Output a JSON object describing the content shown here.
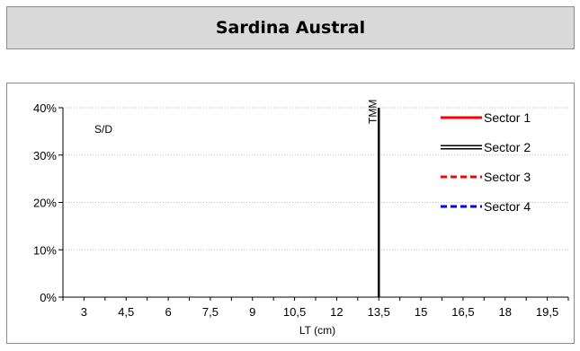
{
  "page": {
    "title": "Sardina Austral"
  },
  "chart_data": {
    "type": "line",
    "xlabel": "LT (cm)",
    "ylabel": "",
    "x_ticks": [
      3,
      4.5,
      6,
      7.5,
      9,
      10.5,
      12,
      13.5,
      15,
      16.5,
      18,
      19.5
    ],
    "x_tick_labels": [
      "3",
      "4,5",
      "6",
      "7,5",
      "9",
      "10,5",
      "12",
      "13,5",
      "15",
      "16,5",
      "18",
      "19,5"
    ],
    "xlim": [
      2.25,
      20.25
    ],
    "y_ticks": [
      0,
      0.1,
      0.2,
      0.3,
      0.4
    ],
    "y_tick_labels": [
      "0%",
      "10%",
      "20%",
      "30%",
      "40%"
    ],
    "ylim": [
      0,
      0.4
    ],
    "grid": "horizontal dotted",
    "legend_position": "top-right",
    "series": [
      {
        "name": "Sector 1",
        "color": "#ff0000",
        "style": "solid",
        "points": []
      },
      {
        "name": "Sector 2",
        "color": "#000000",
        "style": "double",
        "points": []
      },
      {
        "name": "Sector 3",
        "color": "#ff0000",
        "style": "dashed",
        "points": []
      },
      {
        "name": "Sector 4",
        "color": "#0000ff",
        "style": "dashed",
        "points": []
      }
    ],
    "reference_line": {
      "label": "TMM",
      "x": 13.5,
      "color": "#000000"
    },
    "annotation": "S/D"
  }
}
